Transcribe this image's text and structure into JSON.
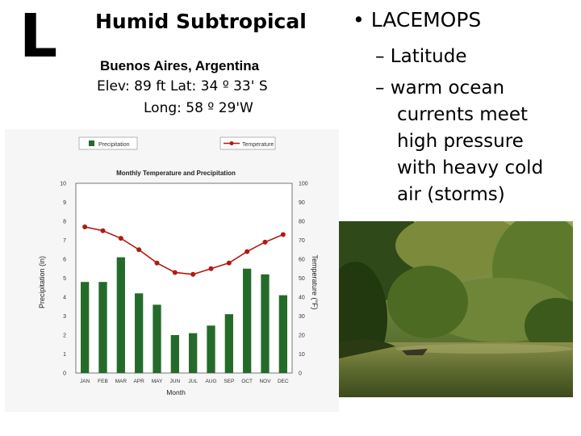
{
  "slide": {
    "letter": "L",
    "title": "Humid Subtropical",
    "city": "Buenos Aires, Argentina",
    "elevation_line": "Elev: 89 ft    Lat: 34 º 33' S",
    "longitude_line": "Long: 58 º 29'W",
    "bullet": "• LACEMOPS",
    "sub1": "– Latitude",
    "sub2_lines": [
      "– warm ocean",
      "currents meet",
      "high pressure",
      "with heavy cold",
      "air (storms)"
    ]
  },
  "colors": {
    "bar": "#246b2a",
    "line": "#b01a12",
    "panel": "#f6f6f6"
  },
  "chart_data": {
    "type": "bar",
    "title": "Monthly Temperature and Precipitation",
    "xlabel": "Month",
    "ylabel": "Precipitation (in)",
    "y2label": "Temperature (°F)",
    "categories": [
      "JAN",
      "FEB",
      "MAR",
      "APR",
      "MAY",
      "JUN",
      "JUL",
      "AUG",
      "SEP",
      "OCT",
      "NOV",
      "DEC"
    ],
    "series": [
      {
        "name": "Precipitation",
        "type": "bar",
        "axis": "left",
        "values": [
          4.8,
          4.8,
          6.1,
          4.2,
          3.6,
          2.0,
          2.1,
          2.5,
          3.1,
          5.5,
          5.2,
          4.1
        ]
      },
      {
        "name": "Temperature",
        "type": "line",
        "axis": "right",
        "values": [
          77,
          75,
          71,
          65,
          58,
          53,
          52,
          55,
          58,
          64,
          69,
          73
        ]
      }
    ],
    "ylim": [
      0,
      10
    ],
    "y2lim": [
      0,
      100
    ],
    "yticks": [
      "0",
      "1",
      "2",
      "3",
      "4",
      "5",
      "6",
      "7",
      "8",
      "9",
      "10"
    ],
    "y2ticks": [
      "0",
      "10",
      "20",
      "30",
      "40",
      "50",
      "60",
      "70",
      "80",
      "90",
      "100"
    ],
    "legend": [
      "Precipitation",
      "Temperature"
    ],
    "legend_position": "top",
    "grid": false
  },
  "photo": {
    "description_icon": "river-landscape-photo"
  }
}
